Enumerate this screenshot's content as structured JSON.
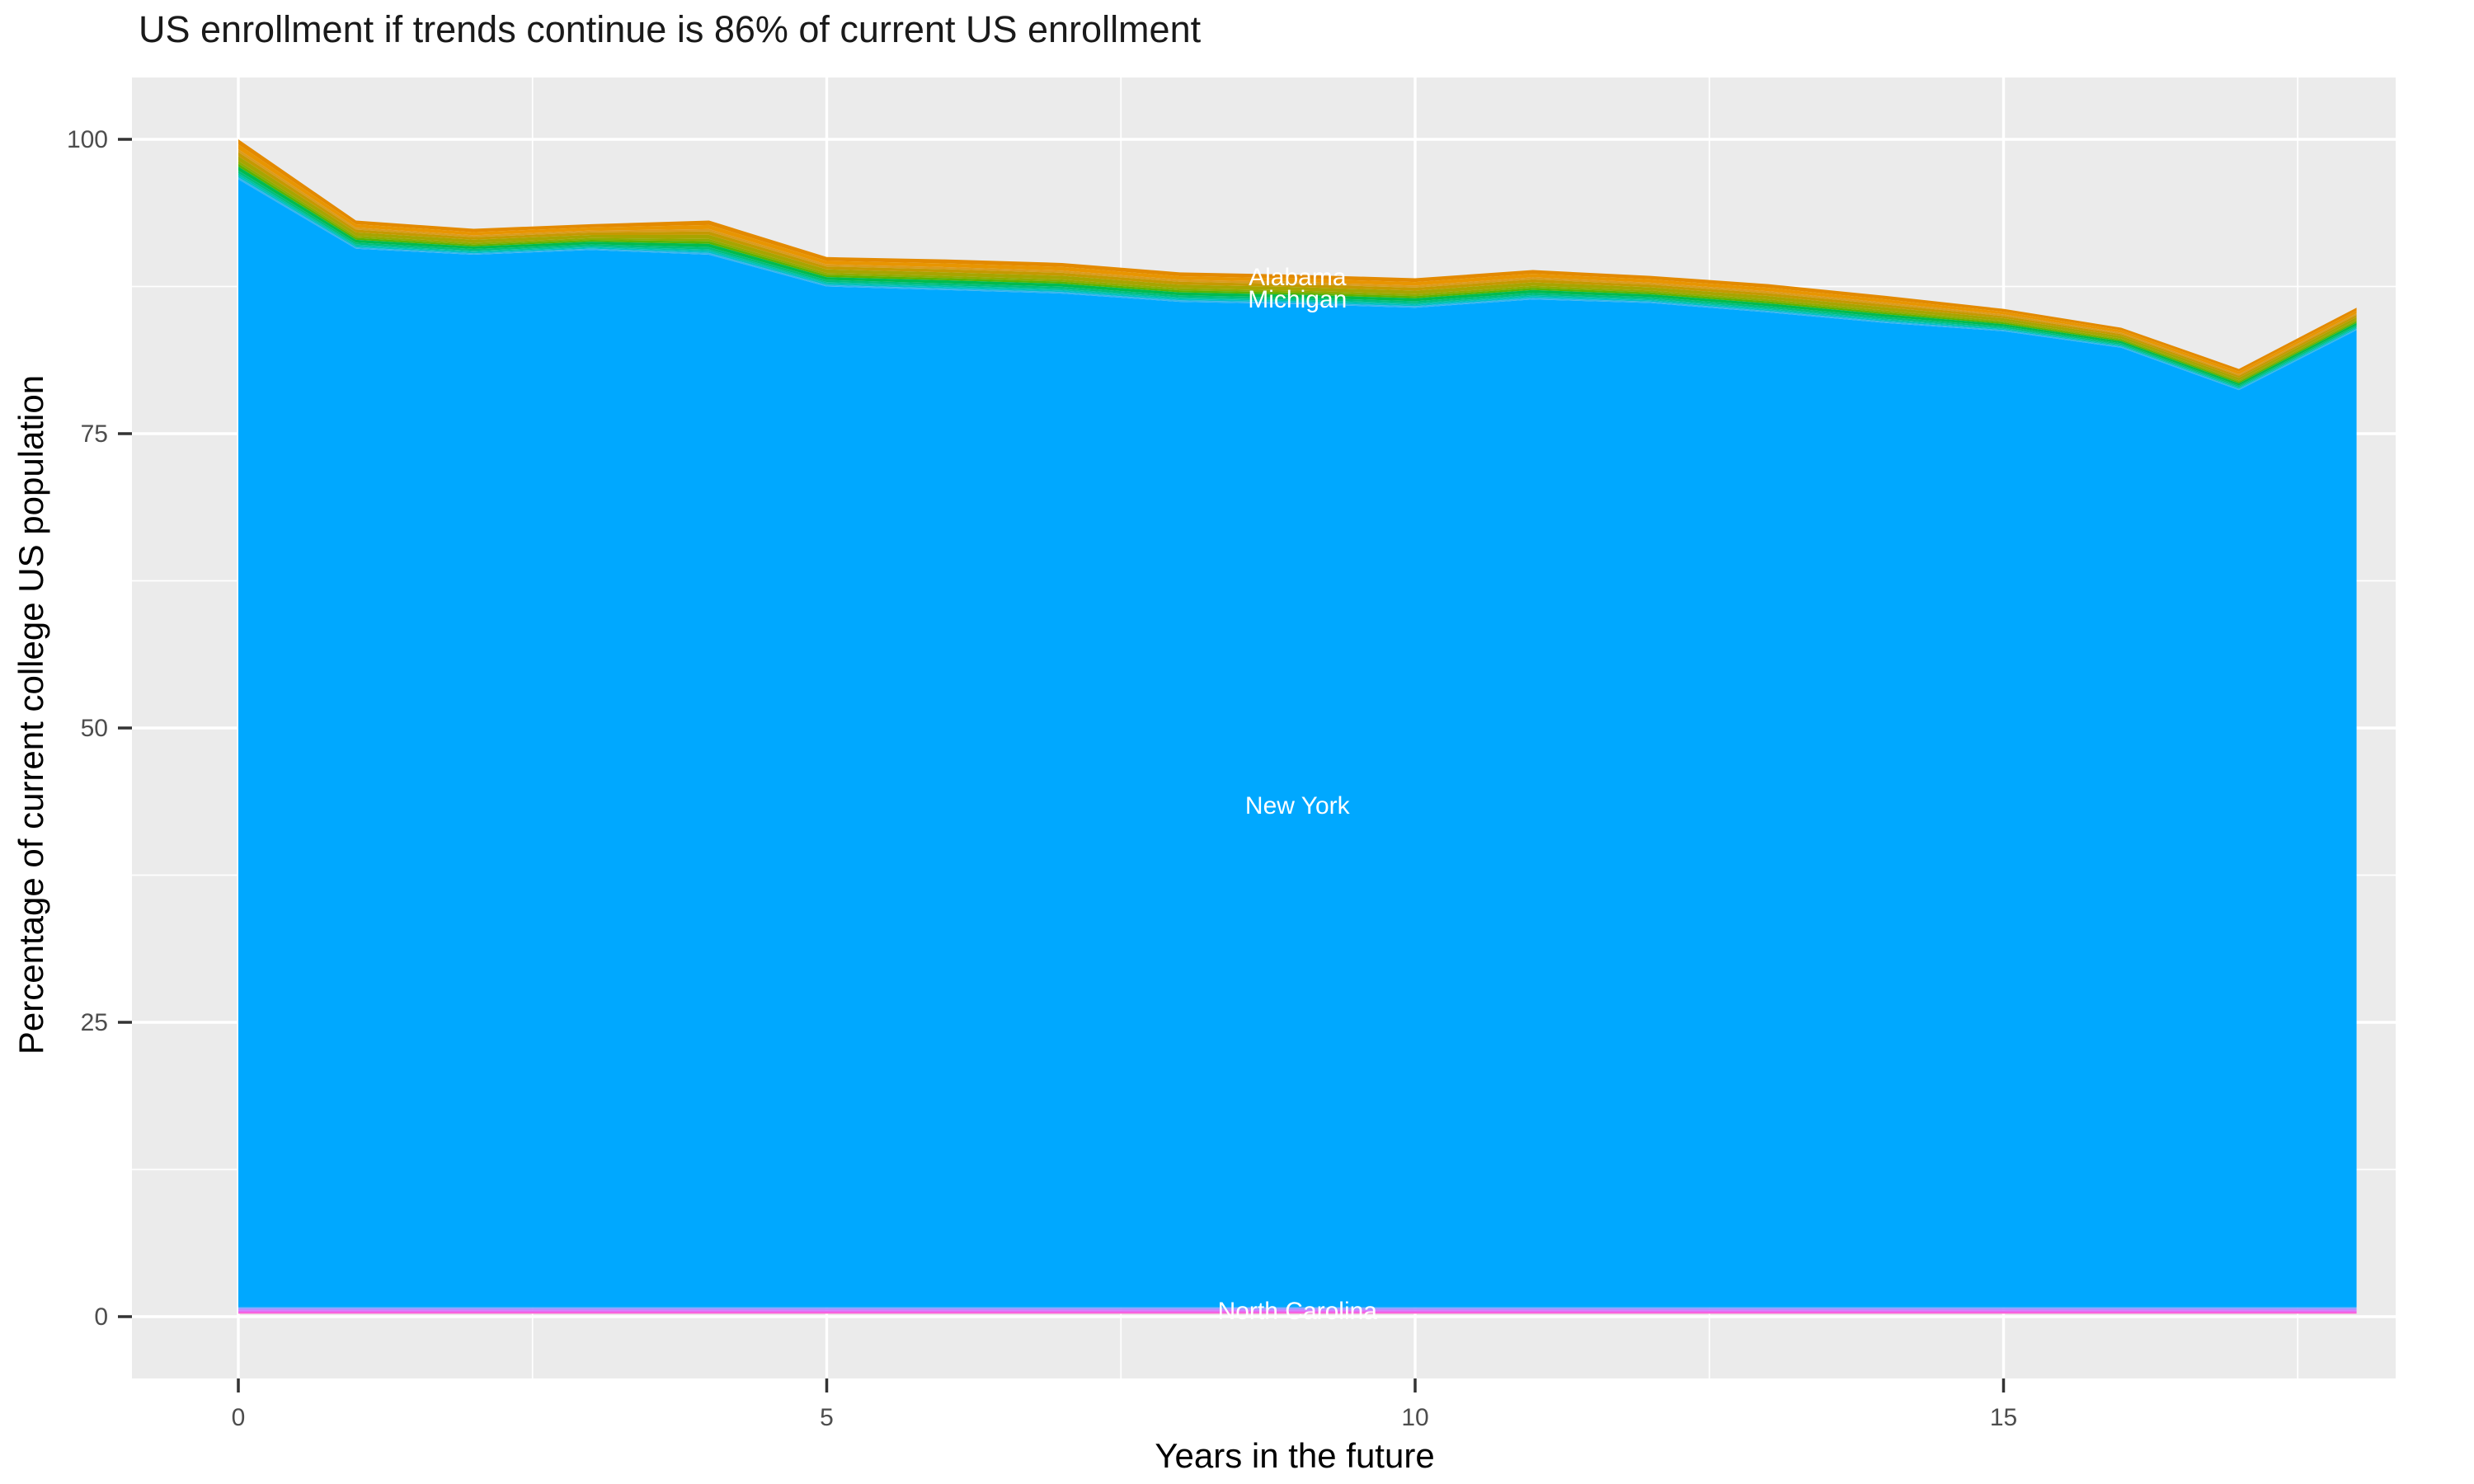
{
  "title": "US enrollment if trends continue is 86% of current US enrollment",
  "axes": {
    "x": {
      "title": "Years in the future",
      "ticks": [
        0,
        5,
        10,
        15
      ],
      "minor_ticks": [
        2.5,
        7.5,
        12.5,
        17.5
      ],
      "range": [
        0,
        18
      ]
    },
    "y": {
      "title": "Percentage of current college US population",
      "ticks": [
        0,
        25,
        50,
        75,
        100
      ],
      "minor_ticks": [
        12.5,
        37.5,
        62.5,
        87.5
      ],
      "range": [
        0,
        100
      ]
    }
  },
  "chart_data": {
    "type": "area",
    "stacked": true,
    "title": "US enrollment if trends continue is 86% of current US enrollment",
    "xlabel": "Years in the future",
    "ylabel": "Percentage of current college US population",
    "xlim": [
      0,
      18
    ],
    "ylim": [
      0,
      100
    ],
    "grid": "on",
    "legend_position": "none",
    "x": [
      0,
      1,
      2,
      3,
      4,
      5,
      6,
      7,
      8,
      9,
      10,
      11,
      12,
      13,
      14,
      15,
      16,
      17,
      18
    ],
    "total_top": [
      100,
      93.1,
      92.4,
      92.8,
      93.1,
      90.0,
      89.8,
      89.5,
      88.7,
      88.5,
      88.2,
      88.9,
      88.4,
      87.7,
      86.7,
      85.6,
      84.0,
      80.5,
      85.7
    ],
    "new_york_top": [
      96.6,
      90.7,
      90.2,
      90.6,
      90.2,
      87.5,
      87.2,
      86.9,
      86.2,
      86.0,
      85.7,
      86.4,
      86.1,
      85.3,
      84.4,
      83.7,
      82.3,
      78.7,
      83.8
    ],
    "below_newyork_top": 0.8,
    "area_labels": [
      {
        "label": "Alabama",
        "x": 9,
        "value": 88.3
      },
      {
        "label": "Michigan",
        "x": 9,
        "value": 86.4
      },
      {
        "label": "New York",
        "x": 9,
        "value": 43.4
      },
      {
        "label": "North Carolina",
        "x": 9,
        "value": 0.5
      }
    ],
    "above_bands": [
      {
        "name": "band-orange-1",
        "color": "#E38A00",
        "frac": 0.13
      },
      {
        "name": "band-orange-2",
        "color": "#E89500",
        "frac": 0.12
      },
      {
        "name": "band-amber-1",
        "color": "#DA9B1E",
        "frac": 0.07
      },
      {
        "name": "band-amber-2",
        "color": "#C69900",
        "frac": 0.1
      },
      {
        "name": "band-olive",
        "color": "#A8A400",
        "frac": 0.12
      },
      {
        "name": "band-yellowgreen",
        "color": "#8FAB00",
        "frac": 0.07
      },
      {
        "name": "band-greenyellow",
        "color": "#5BB300",
        "frac": 0.07
      },
      {
        "name": "band-green",
        "color": "#00BB4E",
        "frac": 0.1
      },
      {
        "name": "band-emerald",
        "color": "#00BE7C",
        "frac": 0.07
      },
      {
        "name": "band-teal",
        "color": "#00C1A2",
        "frac": 0.05
      },
      {
        "name": "band-cyan",
        "color": "#00BFC8",
        "frac": 0.05
      },
      {
        "name": "band-lightblue",
        "color": "#37B4EE",
        "frac": 0.05
      }
    ],
    "main_band": {
      "name": "New York",
      "color": "#00A8FF"
    },
    "below_bands": [
      {
        "name": "band-periwinkle",
        "color": "#7FA8FF",
        "frac": 0.16
      },
      {
        "name": "band-violet",
        "color": "#B58CFF",
        "frac": 0.16
      },
      {
        "name": "band-orchid",
        "color": "#DC71FB",
        "frac": 0.16
      },
      {
        "name": "band-magenta",
        "color": "#F763DF",
        "frac": 0.17
      },
      {
        "name": "band-hotpink",
        "color": "#FF61C3",
        "frac": 0.2
      },
      {
        "name": "band-palepink",
        "color": "#FF8CCB",
        "frac": 0.15
      }
    ],
    "colors": {
      "panel_background": "#EBEBEB",
      "grid_major": "#FFFFFF",
      "grid_minor": "#FFFFFF",
      "tick_text": "#4D4D4D",
      "tick_mark": "#333333",
      "title_text": "#1A1A1A",
      "area_label_text": "#FFFFFF"
    }
  }
}
